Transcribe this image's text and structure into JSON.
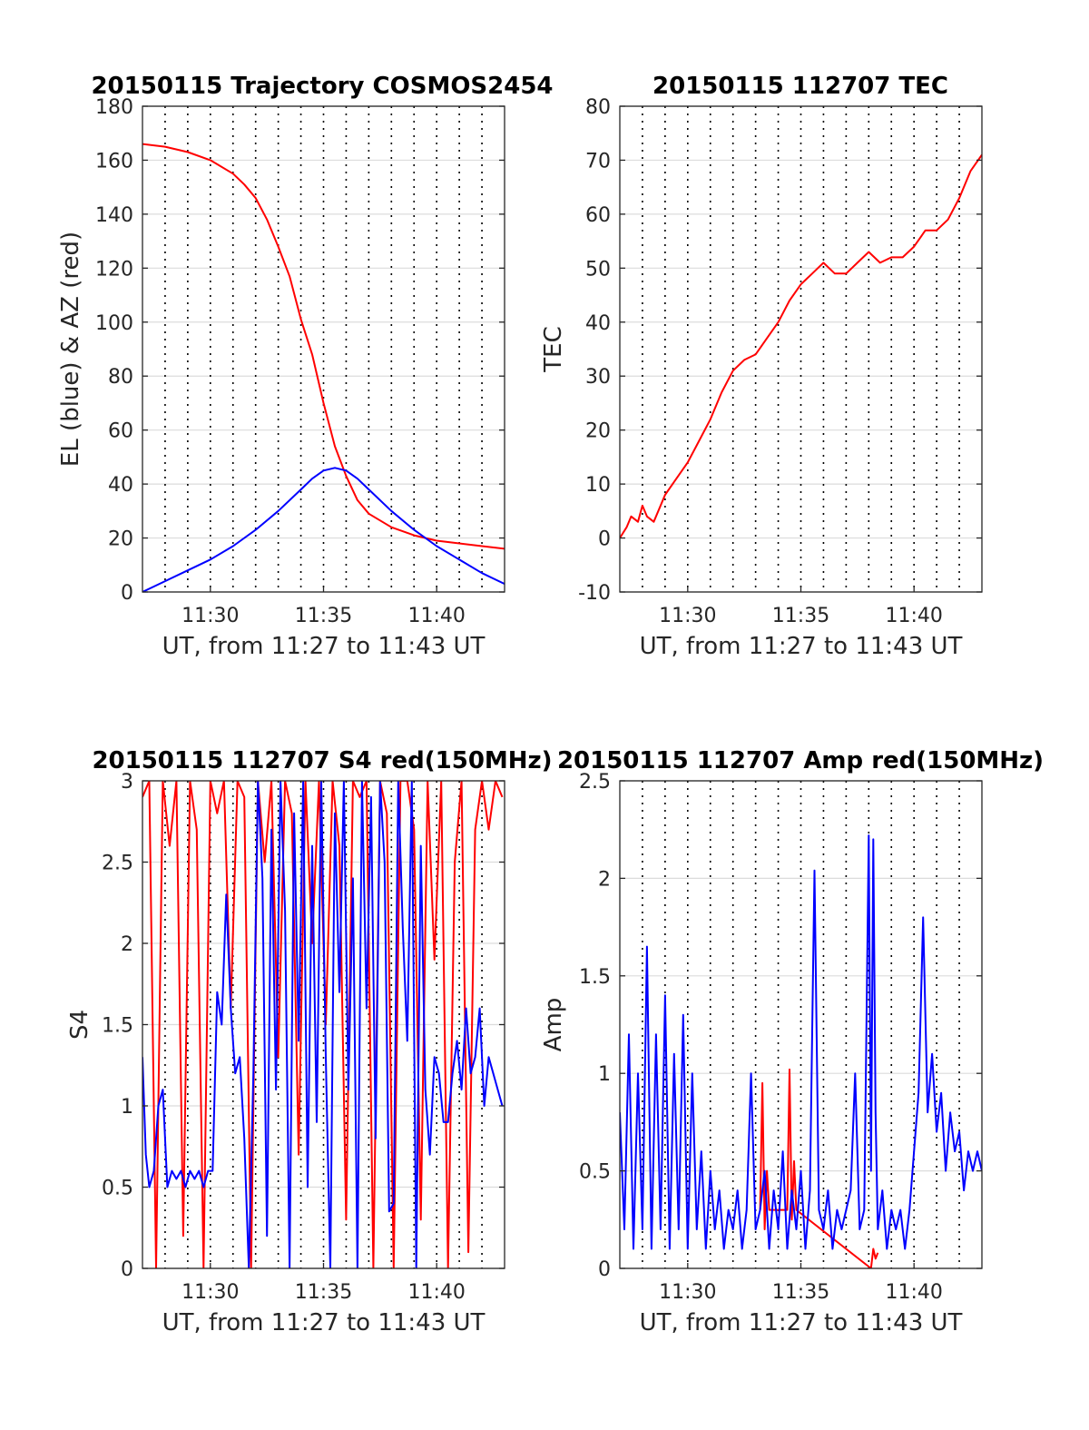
{
  "chart_data": [
    {
      "type": "line",
      "title": "20150115 Trajectory COSMOS2454",
      "xlabel": "UT, from 11:27 to 11:43 UT",
      "ylabel": "EL (blue) & AZ (red)",
      "xlim": [
        27,
        43
      ],
      "ylim": [
        0,
        180
      ],
      "xticks": [
        30,
        35,
        40
      ],
      "xtick_labels": [
        "11:30",
        "11:35",
        "11:40"
      ],
      "yticks": [
        0,
        20,
        40,
        60,
        80,
        100,
        120,
        140,
        160,
        180
      ],
      "ytick_labels": [
        "0",
        "20",
        "40",
        "60",
        "80",
        "100",
        "120",
        "140",
        "160",
        "180"
      ],
      "grid": true,
      "series": [
        {
          "color": "#ff0000",
          "x": [
            27,
            28,
            29,
            30,
            31,
            31.5,
            32,
            32.5,
            33,
            33.5,
            34,
            34.5,
            35,
            35.5,
            36,
            36.5,
            37,
            38,
            39,
            40,
            41,
            42,
            43
          ],
          "y": [
            166,
            165,
            163,
            160,
            155,
            151,
            146,
            138,
            128,
            117,
            101,
            88,
            70,
            54,
            43,
            34,
            29,
            24,
            21,
            19,
            18,
            17,
            16
          ]
        },
        {
          "color": "#0000ff",
          "x": [
            27,
            28,
            29,
            30,
            31,
            32,
            33,
            34,
            34.5,
            35,
            35.5,
            36,
            36.5,
            37,
            38,
            39,
            40,
            41,
            42,
            43
          ],
          "y": [
            0,
            4,
            8,
            12,
            17,
            23,
            30,
            38,
            42,
            45,
            46,
            45,
            42,
            38,
            30,
            23,
            17,
            12,
            7,
            3
          ]
        }
      ]
    },
    {
      "type": "line",
      "title": "20150115 112707 TEC",
      "xlabel": "UT, from 11:27 to 11:43 UT",
      "ylabel": "TEC",
      "xlim": [
        27,
        43
      ],
      "ylim": [
        -10,
        80
      ],
      "xticks": [
        30,
        35,
        40
      ],
      "xtick_labels": [
        "11:30",
        "11:35",
        "11:40"
      ],
      "yticks": [
        -10,
        0,
        10,
        20,
        30,
        40,
        50,
        60,
        70,
        80
      ],
      "ytick_labels": [
        "-10",
        "0",
        "10",
        "20",
        "30",
        "40",
        "50",
        "60",
        "70",
        "80"
      ],
      "grid": true,
      "series": [
        {
          "color": "#ff0000",
          "x": [
            27,
            27.3,
            27.5,
            27.8,
            28,
            28.2,
            28.5,
            29,
            29.5,
            30,
            30.5,
            31,
            31.5,
            32,
            32.5,
            33,
            33.5,
            34,
            34.5,
            35,
            35.5,
            36,
            36.5,
            37,
            37.5,
            38,
            38.5,
            39,
            39.5,
            40,
            40.5,
            41,
            41.5,
            42,
            42.5,
            43
          ],
          "y": [
            0,
            2,
            4,
            3,
            6,
            4,
            3,
            8,
            11,
            14,
            18,
            22,
            27,
            31,
            33,
            34,
            37,
            40,
            44,
            47,
            49,
            51,
            49,
            49,
            51,
            53,
            51,
            52,
            52,
            54,
            57,
            57,
            59,
            63,
            68,
            71
          ]
        }
      ]
    },
    {
      "type": "line",
      "title": "20150115 112707 S4 red(150MHz)",
      "xlabel": "UT, from 11:27 to 11:43 UT",
      "ylabel": "S4",
      "xlim": [
        27,
        43
      ],
      "ylim": [
        0,
        3
      ],
      "xticks": [
        30,
        35,
        40
      ],
      "xtick_labels": [
        "11:30",
        "11:35",
        "11:40"
      ],
      "yticks": [
        0,
        0.5,
        1,
        1.5,
        2,
        2.5,
        3
      ],
      "ytick_labels": [
        "0",
        "0.5",
        "1",
        "1.5",
        "2",
        "2.5",
        "3"
      ],
      "grid": true,
      "series": [
        {
          "color": "#ff0000",
          "x": [
            27,
            27.3,
            27.6,
            27.9,
            28.2,
            28.5,
            28.8,
            29.1,
            29.4,
            29.7,
            30,
            30.3,
            30.6,
            30.9,
            31.2,
            31.5,
            31.8,
            32.1,
            32.4,
            32.7,
            33,
            33.3,
            33.6,
            33.9,
            34.2,
            34.5,
            34.8,
            35.1,
            35.4,
            35.7,
            36,
            36.3,
            36.6,
            36.9,
            37.2,
            37.5,
            37.8,
            38.1,
            38.4,
            38.7,
            39,
            39.3,
            39.6,
            39.9,
            40.2,
            40.5,
            40.8,
            41.1,
            41.4,
            41.7,
            42,
            42.3,
            42.6,
            42.9
          ],
          "y": [
            2.9,
            3,
            0,
            3,
            2.6,
            3,
            0.2,
            3,
            2.7,
            0,
            3,
            2.8,
            3,
            1.6,
            3,
            2.9,
            0,
            3,
            2.5,
            3,
            1.3,
            3,
            2.8,
            0.7,
            3,
            2,
            3,
            1.5,
            3,
            2.6,
            0.3,
            3,
            2.9,
            3,
            0,
            3,
            2.8,
            0,
            3,
            3,
            2.7,
            0.3,
            3,
            1.9,
            3,
            0,
            2.5,
            3,
            0.1,
            2.7,
            3,
            2.7,
            3,
            2.9
          ]
        },
        {
          "color": "#0000ff",
          "x": [
            27,
            27.15,
            27.3,
            27.5,
            27.7,
            27.9,
            28.1,
            28.3,
            28.5,
            28.7,
            28.9,
            29.1,
            29.3,
            29.5,
            29.7,
            29.9,
            30.1,
            30.3,
            30.5,
            30.7,
            30.9,
            31.1,
            31.3,
            31.5,
            31.7,
            31.9,
            32.1,
            32.3,
            32.5,
            32.7,
            32.9,
            33.1,
            33.3,
            33.5,
            33.7,
            33.9,
            34.1,
            34.3,
            34.5,
            34.7,
            34.9,
            35.1,
            35.3,
            35.5,
            35.7,
            35.9,
            36.1,
            36.3,
            36.5,
            36.7,
            36.9,
            37.1,
            37.3,
            37.5,
            37.7,
            37.9,
            38.1,
            38.3,
            38.5,
            38.7,
            38.9,
            39.1,
            39.3,
            39.5,
            39.7,
            39.9,
            40.1,
            40.3,
            40.5,
            40.7,
            40.9,
            41.1,
            41.3,
            41.5,
            41.7,
            41.9,
            42.1,
            42.3,
            42.5,
            42.7,
            42.9
          ],
          "y": [
            1.3,
            0.7,
            0.5,
            0.6,
            1,
            1.1,
            0.5,
            0.6,
            0.55,
            0.6,
            0.5,
            0.6,
            0.55,
            0.6,
            0.5,
            0.6,
            0.6,
            1.7,
            1.5,
            2.3,
            1.6,
            1.2,
            1.3,
            0.8,
            0,
            1.2,
            3,
            2.4,
            0.2,
            2.7,
            1.1,
            3,
            2.2,
            0,
            2.8,
            1.4,
            3,
            0.5,
            2.6,
            0.9,
            3,
            1.3,
            0,
            2.8,
            1.7,
            3,
            1.1,
            2.4,
            0,
            3,
            1.6,
            2.9,
            0.8,
            3,
            2.5,
            0.35,
            0.4,
            3,
            2.1,
            1.4,
            3,
            0,
            2.6,
            1.1,
            0.7,
            1.3,
            1.2,
            0.9,
            0.9,
            1.2,
            1.4,
            1.1,
            1.6,
            1.2,
            1.3,
            1.6,
            1.0,
            1.3,
            1.2,
            1.1,
            1.0
          ]
        }
      ]
    },
    {
      "type": "line",
      "title": "20150115 112707 Amp red(150MHz)",
      "xlabel": "UT, from 11:27 to 11:43 UT",
      "ylabel": "Amp",
      "xlim": [
        27,
        43
      ],
      "ylim": [
        0,
        2.5
      ],
      "xticks": [
        30,
        35,
        40
      ],
      "xtick_labels": [
        "11:30",
        "11:35",
        "11:40"
      ],
      "yticks": [
        0,
        0.5,
        1,
        1.5,
        2,
        2.5
      ],
      "ytick_labels": [
        "0",
        "0.5",
        "1",
        "1.5",
        "2",
        "2.5"
      ],
      "grid": true,
      "series": [
        {
          "color": "#ff0000",
          "x": [
            33.2,
            33.3,
            33.4,
            33.5,
            33.6,
            34.4,
            34.5,
            34.6,
            34.7,
            34.8,
            38.1,
            38.2,
            38.3,
            38.4
          ],
          "y": [
            0.3,
            0.95,
            0.2,
            0.5,
            0.3,
            0.3,
            1.02,
            0.25,
            0.55,
            0.3,
            0,
            0.1,
            0.05,
            0.08
          ]
        },
        {
          "color": "#0000ff",
          "x": [
            27,
            27.2,
            27.4,
            27.6,
            27.8,
            28,
            28.2,
            28.4,
            28.6,
            28.8,
            29,
            29.2,
            29.4,
            29.6,
            29.8,
            30,
            30.2,
            30.4,
            30.6,
            30.8,
            31,
            31.2,
            31.4,
            31.6,
            31.8,
            32,
            32.2,
            32.4,
            32.6,
            32.8,
            33,
            33.2,
            33.4,
            33.6,
            33.8,
            34,
            34.2,
            34.4,
            34.6,
            34.8,
            35,
            35.2,
            35.4,
            35.6,
            35.8,
            36,
            36.2,
            36.4,
            36.6,
            36.8,
            37,
            37.2,
            37.4,
            37.6,
            37.8,
            38,
            38.1,
            38.2,
            38.3,
            38.4,
            38.6,
            38.8,
            39,
            39.2,
            39.4,
            39.6,
            39.8,
            40,
            40.2,
            40.4,
            40.6,
            40.8,
            41,
            41.2,
            41.4,
            41.6,
            41.8,
            42,
            42.2,
            42.4,
            42.6,
            42.8,
            43
          ],
          "y": [
            0.8,
            0.2,
            1.2,
            0.1,
            1.0,
            0.2,
            1.65,
            0.1,
            1.2,
            0.2,
            1.4,
            0.1,
            1.1,
            0.2,
            1.3,
            0.1,
            1.0,
            0.2,
            0.6,
            0.1,
            0.5,
            0.2,
            0.4,
            0.1,
            0.3,
            0.2,
            0.4,
            0.1,
            0.3,
            1.0,
            0.2,
            0.3,
            0.5,
            0.1,
            0.4,
            0.2,
            0.6,
            0.1,
            0.4,
            0.2,
            0.5,
            0.1,
            0.4,
            2.04,
            0.3,
            0.2,
            0.4,
            0.1,
            0.3,
            0.2,
            0.3,
            0.4,
            1.0,
            0.2,
            0.3,
            2.22,
            0.5,
            2.2,
            0.8,
            0.2,
            0.4,
            0.1,
            0.3,
            0.2,
            0.3,
            0.1,
            0.3,
            0.6,
            0.9,
            1.8,
            0.8,
            1.1,
            0.7,
            0.9,
            0.5,
            0.8,
            0.6,
            0.7,
            0.4,
            0.6,
            0.5,
            0.6,
            0.5
          ]
        }
      ]
    }
  ]
}
